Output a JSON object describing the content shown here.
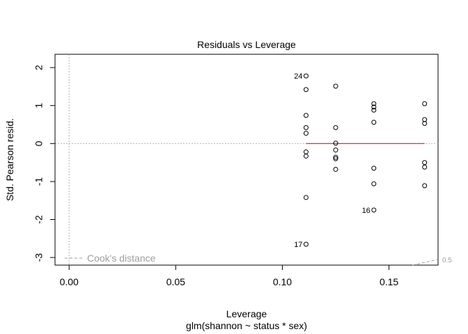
{
  "chart_data": {
    "type": "scatter",
    "title": "Residuals vs Leverage",
    "xlabel": "Leverage",
    "subtitle": "glm(shannon ~ status * sex)",
    "ylabel": "Std. Pearson resid.",
    "xlim": [
      -0.0066,
      0.173
    ],
    "ylim": [
      -3.2,
      2.35
    ],
    "x_ticks": [
      0.0,
      0.05,
      0.1,
      0.15
    ],
    "x_tick_labels": [
      "0.00",
      "0.05",
      "0.10",
      "0.15"
    ],
    "y_ticks": [
      -3,
      -2,
      -1,
      0,
      1,
      2
    ],
    "y_tick_labels": [
      "-3",
      "-2",
      "-1",
      "0",
      "1",
      "2"
    ],
    "grid": false,
    "points": [
      {
        "x": 0.1111,
        "y": 1.78,
        "label": "24"
      },
      {
        "x": 0.1111,
        "y": 1.42
      },
      {
        "x": 0.1111,
        "y": 0.74
      },
      {
        "x": 0.1111,
        "y": 0.42
      },
      {
        "x": 0.1111,
        "y": 0.27
      },
      {
        "x": 0.1111,
        "y": -0.22
      },
      {
        "x": 0.1111,
        "y": -0.33
      },
      {
        "x": 0.1111,
        "y": -1.42
      },
      {
        "x": 0.1111,
        "y": -2.65,
        "label": "17"
      },
      {
        "x": 0.125,
        "y": 1.51
      },
      {
        "x": 0.125,
        "y": 0.42
      },
      {
        "x": 0.125,
        "y": 0.01
      },
      {
        "x": 0.125,
        "y": -0.17
      },
      {
        "x": 0.125,
        "y": -0.36
      },
      {
        "x": 0.125,
        "y": -0.4
      },
      {
        "x": 0.125,
        "y": -0.68
      },
      {
        "x": 0.1429,
        "y": 1.05
      },
      {
        "x": 0.1429,
        "y": 0.96
      },
      {
        "x": 0.1429,
        "y": 0.88
      },
      {
        "x": 0.1429,
        "y": 0.56
      },
      {
        "x": 0.1429,
        "y": -0.65
      },
      {
        "x": 0.1429,
        "y": -1.06
      },
      {
        "x": 0.1429,
        "y": -1.75,
        "label": "16"
      },
      {
        "x": 0.1667,
        "y": 1.05
      },
      {
        "x": 0.1667,
        "y": 0.63
      },
      {
        "x": 0.1667,
        "y": 0.53
      },
      {
        "x": 0.1667,
        "y": -0.5
      },
      {
        "x": 0.1667,
        "y": -0.62
      },
      {
        "x": 0.1667,
        "y": -1.11
      }
    ],
    "smoother": [
      {
        "x": 0.1111,
        "y": 0.0
      },
      {
        "x": 0.1667,
        "y": 0.0
      }
    ],
    "reference_lines": {
      "h": 0,
      "v": 0
    },
    "cooks_contour": {
      "level_label": "0.5",
      "points": [
        {
          "x": 0.161,
          "y": -3.2
        },
        {
          "x": 0.173,
          "y": -3.05
        }
      ]
    },
    "legend": {
      "entry": "Cook's distance",
      "position": "bottom-left"
    },
    "colors": {
      "points": "#000000",
      "smoother": "#dd0000",
      "reference": "#b0b0b0",
      "cooks": "#9e9e9e"
    }
  }
}
